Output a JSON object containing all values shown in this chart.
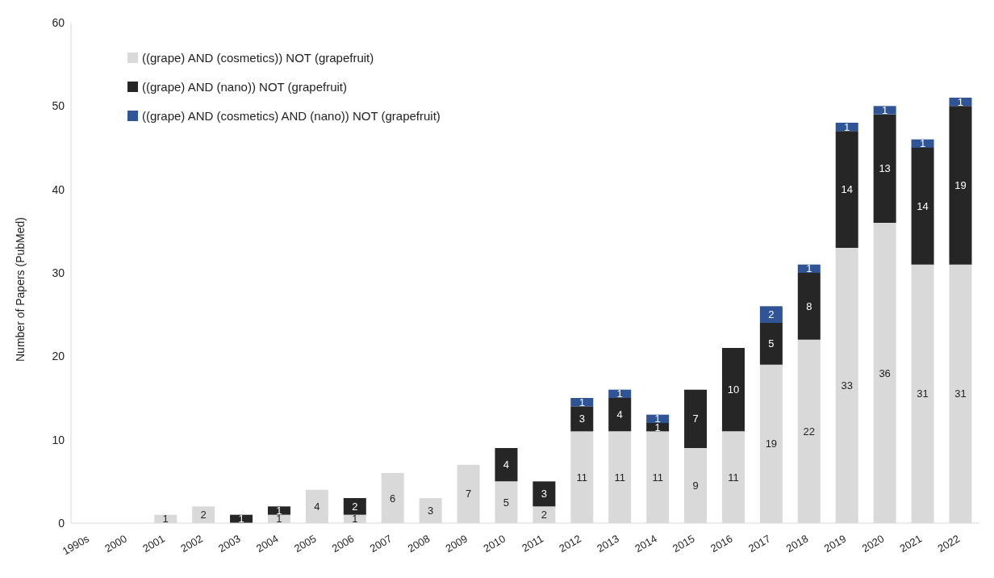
{
  "chart_data": {
    "type": "bar",
    "stacked": true,
    "ylabel": "Number of Papers (PubMed)",
    "categories": [
      "1990s",
      "2000",
      "2001",
      "2002",
      "2003",
      "2004",
      "2005",
      "2006",
      "2007",
      "2008",
      "2009",
      "2010",
      "2011",
      "2012",
      "2013",
      "2014",
      "2015",
      "2016",
      "2017",
      "2018",
      "2019",
      "2020",
      "2021",
      "2022"
    ],
    "series": [
      {
        "name": "((grape) AND (cosmetics)) NOT (grapefruit)",
        "color": "#d9d9d9",
        "values": [
          null,
          null,
          1,
          2,
          null,
          1,
          4,
          1,
          6,
          3,
          7,
          5,
          2,
          11,
          11,
          11,
          9,
          11,
          19,
          22,
          33,
          36,
          31,
          31
        ]
      },
      {
        "name": "((grape) AND (nano)) NOT (grapefruit)",
        "color": "#262626",
        "values": [
          null,
          null,
          null,
          null,
          1,
          1,
          null,
          2,
          null,
          null,
          null,
          4,
          3,
          3,
          4,
          1,
          7,
          10,
          5,
          8,
          14,
          13,
          14,
          19
        ]
      },
      {
        "name": "((grape) AND (cosmetics) AND (nano)) NOT (grapefruit)",
        "color": "#2f5597",
        "values": [
          null,
          null,
          null,
          null,
          null,
          null,
          null,
          null,
          null,
          null,
          null,
          null,
          null,
          1,
          1,
          1,
          null,
          null,
          2,
          1,
          1,
          1,
          1,
          1
        ]
      }
    ],
    "ylim": [
      0,
      60
    ],
    "yticks": [
      0,
      10,
      20,
      30,
      40,
      50,
      60
    ],
    "grid": false,
    "legend": "top left",
    "data_labels": true
  }
}
